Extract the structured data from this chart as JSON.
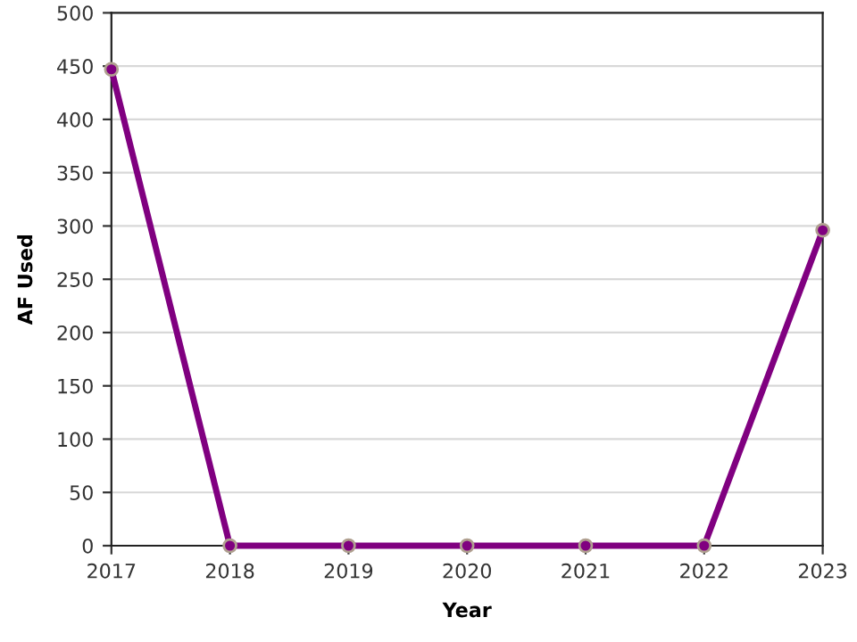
{
  "chart_data": {
    "type": "line",
    "xlabel": "Year",
    "ylabel": "AF Used",
    "x": [
      2017,
      2018,
      2019,
      2020,
      2021,
      2022,
      2023
    ],
    "series": [
      {
        "color": "#800080",
        "values": [
          447,
          0,
          0,
          0,
          0,
          0,
          296
        ]
      }
    ],
    "xlim": [
      2017,
      2023
    ],
    "xticks": [
      2017,
      2018,
      2019,
      2020,
      2021,
      2022,
      2023
    ],
    "ylim": [
      0,
      500
    ],
    "yticks": [
      0,
      50,
      100,
      150,
      200,
      250,
      300,
      350,
      400,
      450,
      500
    ],
    "grid": "y",
    "marker": "circle",
    "line_style": "solid"
  }
}
